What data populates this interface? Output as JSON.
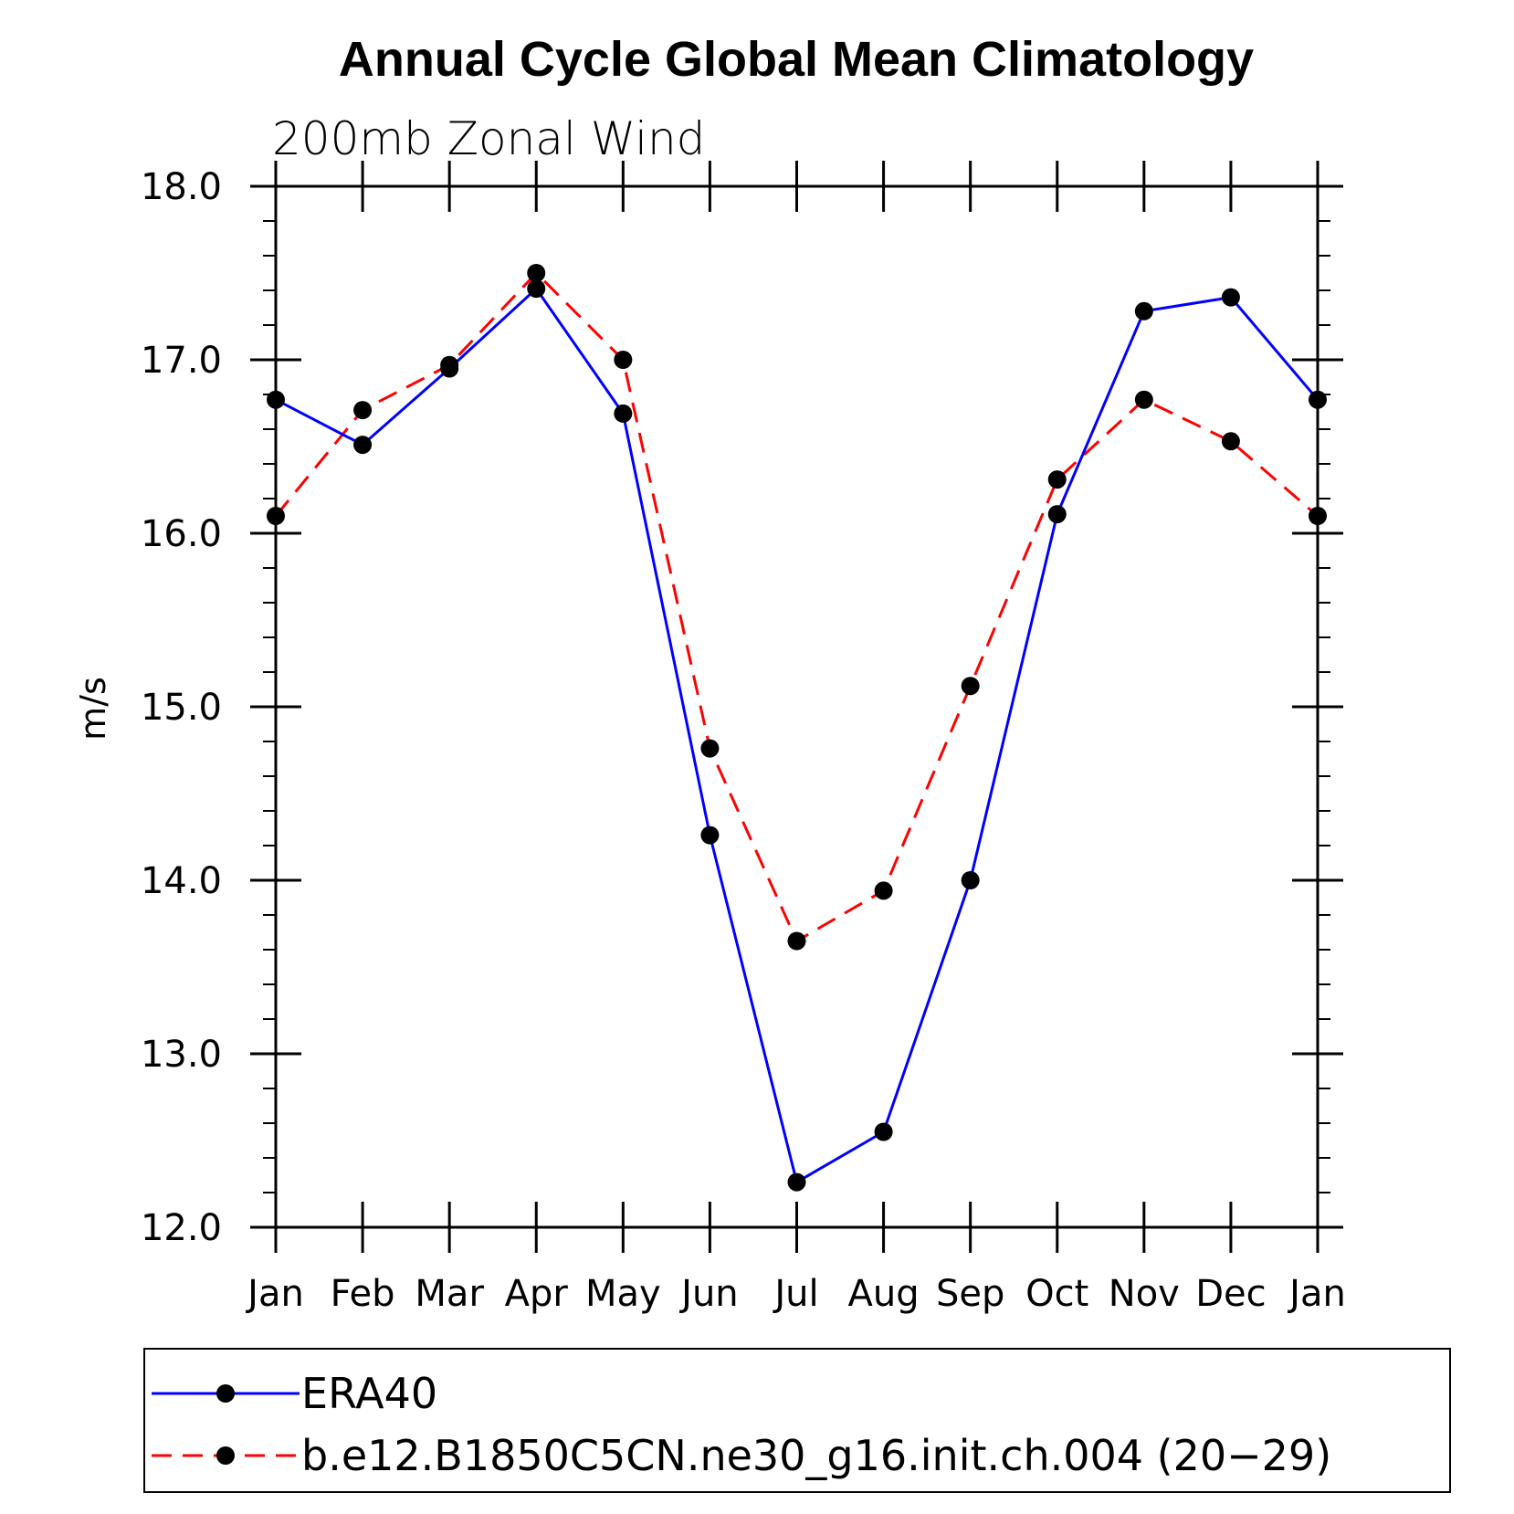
{
  "chart_data": {
    "type": "line",
    "title": "Annual Cycle Global Mean Climatology",
    "subtitle": "200mb Zonal Wind",
    "xlabel": "",
    "ylabel": "m/s",
    "categories": [
      "Jan",
      "Feb",
      "Mar",
      "Apr",
      "May",
      "Jun",
      "Jul",
      "Aug",
      "Sep",
      "Oct",
      "Nov",
      "Dec",
      "Jan"
    ],
    "ylim": [
      12.0,
      18.0
    ],
    "yticks": [
      "12.0",
      "13.0",
      "14.0",
      "15.0",
      "16.0",
      "17.0",
      "18.0"
    ],
    "grid": false,
    "legend_position": "bottom",
    "series": [
      {
        "name": "ERA40",
        "color": "#0000ff",
        "style": "solid",
        "values": [
          16.77,
          16.51,
          16.95,
          17.41,
          16.69,
          14.26,
          12.26,
          12.55,
          14.0,
          16.11,
          17.28,
          17.36,
          16.77
        ]
      },
      {
        "name": "b.e12.B1850C5CN.ne30_g16.init.ch.004 (20−29)",
        "color": "#ff0000",
        "style": "dashed",
        "values": [
          16.1,
          16.71,
          16.97,
          17.5,
          17.0,
          14.76,
          13.65,
          13.94,
          15.12,
          16.31,
          16.77,
          16.53,
          16.1
        ]
      }
    ]
  }
}
